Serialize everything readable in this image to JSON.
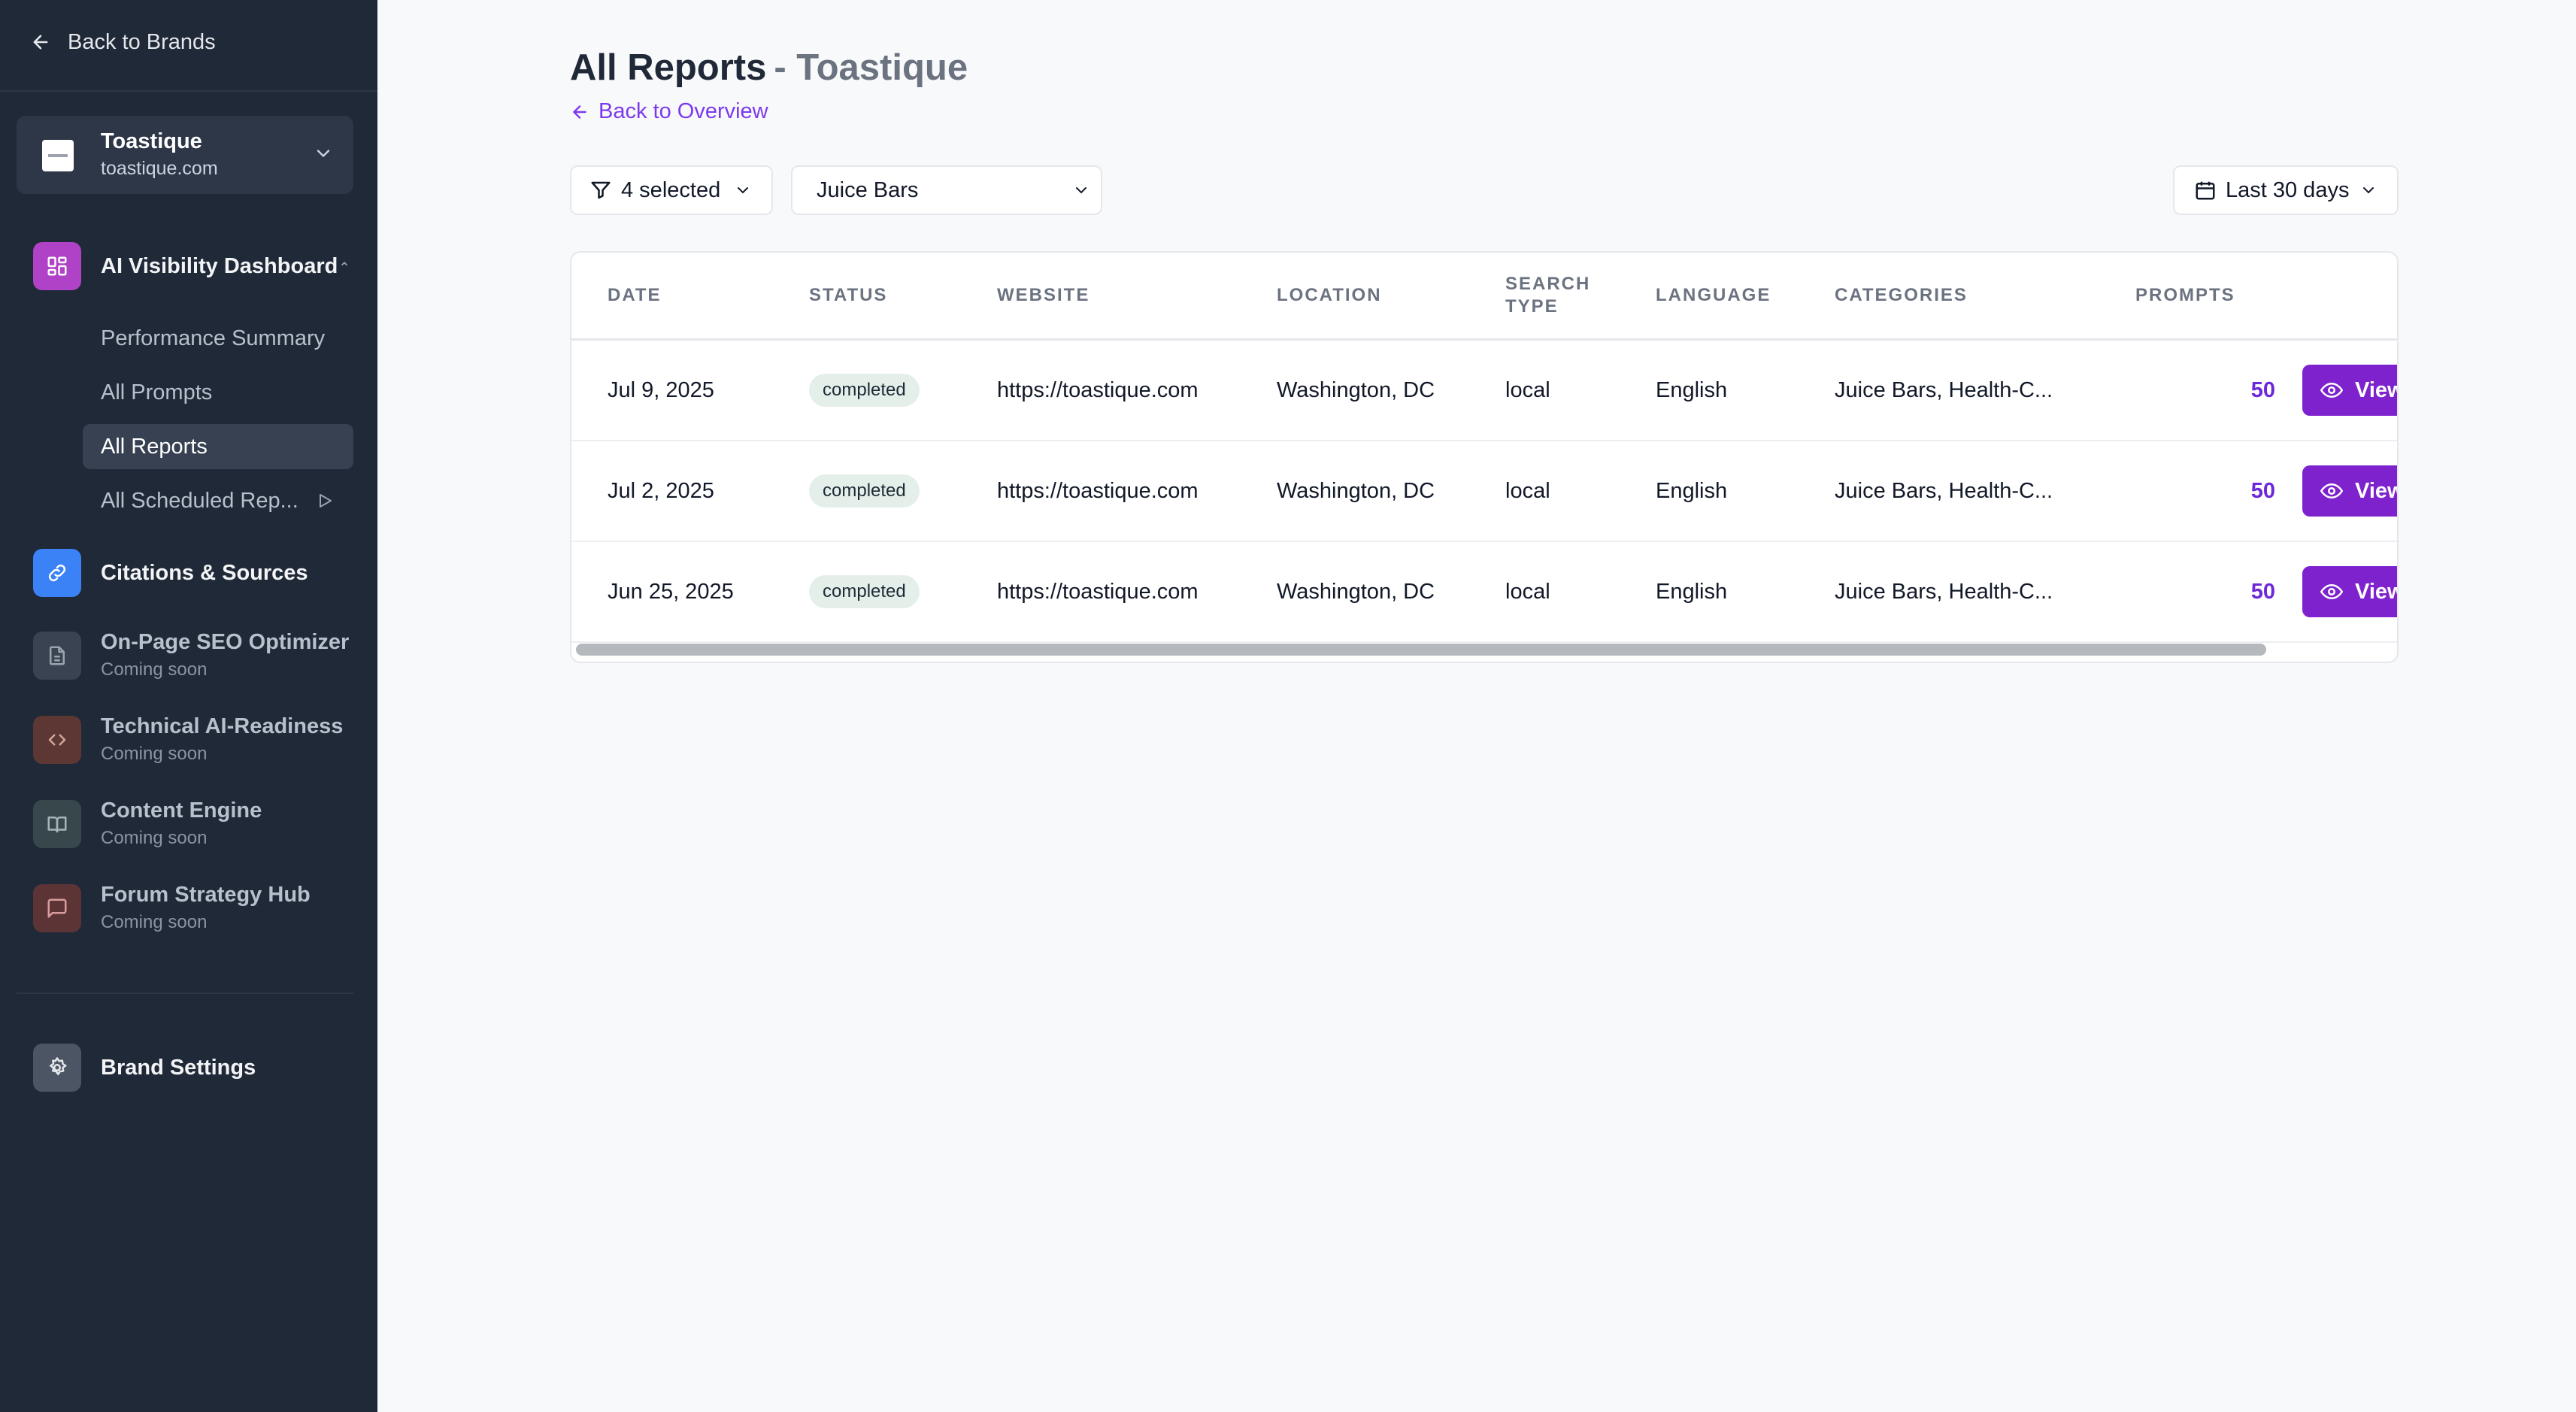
{
  "sidebar": {
    "back_label": "Back to Brands",
    "brand": {
      "name": "Toastique",
      "domain": "toastique.com"
    },
    "nav": {
      "ai_visibility": {
        "label": "AI Visibility Dashboard",
        "color": "#b042c7"
      },
      "sub_items": [
        {
          "label": "Performance Summary"
        },
        {
          "label": "All Prompts"
        },
        {
          "label": "All Reports"
        },
        {
          "label": "All Scheduled Rep..."
        }
      ],
      "citations": {
        "label": "Citations & Sources",
        "color": "#3b82f6"
      },
      "seo": {
        "label": "On-Page SEO Optimizer",
        "sub": "Coming soon"
      },
      "technical": {
        "label": "Technical AI-Readiness",
        "sub": "Coming soon"
      },
      "content": {
        "label": "Content Engine",
        "sub": "Coming soon"
      },
      "forum": {
        "label": "Forum Strategy Hub",
        "sub": "Coming soon"
      },
      "settings": {
        "label": "Brand Settings"
      }
    }
  },
  "main": {
    "title": "All Reports",
    "title_brand": "- Toastique",
    "back_label": "Back to Overview",
    "filters": {
      "selected_label": "4 selected",
      "category_value": "Juice Bars",
      "date_range": "Last 30 days"
    },
    "table": {
      "headers": {
        "date": "DATE",
        "status": "STATUS",
        "website": "WEBSITE",
        "location": "LOCATION",
        "search_type_1": "SEARCH",
        "search_type_2": "TYPE",
        "language": "LANGUAGE",
        "categories": "CATEGORIES",
        "prompts": "PROMPTS"
      },
      "view_label": "View",
      "rows": [
        {
          "date": "Jul 9, 2025",
          "status": "completed",
          "website": "https://toastique.com",
          "location": "Washington, DC",
          "search_type": "local",
          "language": "English",
          "categories": "Juice Bars, Health-C...",
          "prompts": "50"
        },
        {
          "date": "Jul 2, 2025",
          "status": "completed",
          "website": "https://toastique.com",
          "location": "Washington, DC",
          "search_type": "local",
          "language": "English",
          "categories": "Juice Bars, Health-C...",
          "prompts": "50"
        },
        {
          "date": "Jun 25, 2025",
          "status": "completed",
          "website": "https://toastique.com",
          "location": "Washington, DC",
          "search_type": "local",
          "language": "English",
          "categories": "Juice Bars, Health-C...",
          "prompts": "50"
        }
      ]
    },
    "accent_color": "#7e22ce"
  }
}
